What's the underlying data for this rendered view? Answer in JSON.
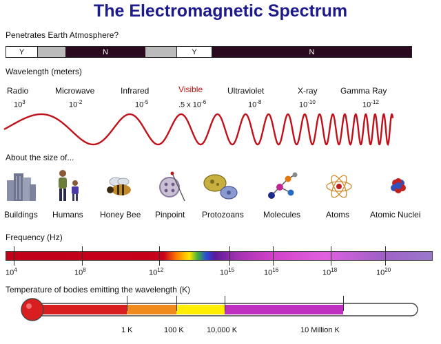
{
  "title": "The Electromagnetic Spectrum",
  "atmosphere": {
    "heading": "Penetrates Earth Atmosphere?",
    "segments": [
      {
        "label": "Y",
        "color": "#ffffff"
      },
      {
        "label": "",
        "color": "#bbbbbb"
      },
      {
        "label": "N",
        "color": "#2a0a1e"
      },
      {
        "label": "",
        "color": "#bbbbbb"
      },
      {
        "label": "Y",
        "color": "#ffffff"
      },
      {
        "label": "N",
        "color": "#2a0a1e"
      }
    ]
  },
  "wavelength": {
    "heading": "Wavelength (meters)",
    "bands": [
      {
        "name": "Radio",
        "base": "10",
        "exp": "3",
        "prefix": ""
      },
      {
        "name": "Microwave",
        "base": "10",
        "exp": "-2",
        "prefix": ""
      },
      {
        "name": "Infrared",
        "base": "10",
        "exp": "-5",
        "prefix": ""
      },
      {
        "name": "Visible",
        "base": "10",
        "exp": "-6",
        "prefix": ".5 x "
      },
      {
        "name": "Ultraviolet",
        "base": "10",
        "exp": "-8",
        "prefix": ""
      },
      {
        "name": "X-ray",
        "base": "10",
        "exp": "-10",
        "prefix": ""
      },
      {
        "name": "Gamma Ray",
        "base": "10",
        "exp": "-12",
        "prefix": ""
      }
    ]
  },
  "size": {
    "heading": "About the size of...",
    "items": [
      {
        "label": "Buildings",
        "icon": "buildings-icon"
      },
      {
        "label": "Humans",
        "icon": "humans-icon"
      },
      {
        "label": "Honey Bee",
        "icon": "honey-bee-icon"
      },
      {
        "label": "Pinpoint",
        "icon": "pinpoint-icon"
      },
      {
        "label": "Protozoans",
        "icon": "protozoans-icon"
      },
      {
        "label": "Molecules",
        "icon": "molecules-icon"
      },
      {
        "label": "Atoms",
        "icon": "atoms-icon"
      },
      {
        "label": "Atomic Nuclei",
        "icon": "atomic-nuclei-icon"
      }
    ]
  },
  "frequency": {
    "heading": "Frequency (Hz)",
    "ticks": [
      {
        "base": "10",
        "exp": "4"
      },
      {
        "base": "10",
        "exp": "8"
      },
      {
        "base": "10",
        "exp": "12"
      },
      {
        "base": "10",
        "exp": "15"
      },
      {
        "base": "10",
        "exp": "16"
      },
      {
        "base": "10",
        "exp": "18"
      },
      {
        "base": "10",
        "exp": "20"
      }
    ]
  },
  "temperature": {
    "heading": "Temperature of bodies emitting the wavelength (K)",
    "ticks": [
      "1 K",
      "100 K",
      "10,000 K",
      "10 Million K"
    ],
    "colors": {
      "bulb": "#d81e1e",
      "segments": [
        "#d81e1e",
        "#f08a1c",
        "#ffee00",
        "#c030c0"
      ]
    }
  }
}
